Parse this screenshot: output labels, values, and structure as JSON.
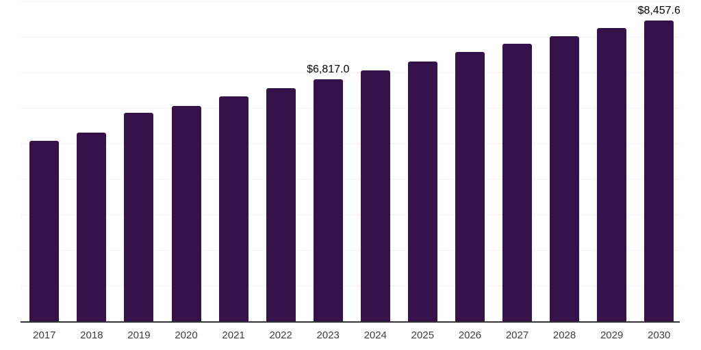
{
  "chart": {
    "bar_color": "#351249",
    "axis_color": "#333333",
    "gridline_color": "#f1f1f1",
    "value_label_color": "#000000",
    "tick_label_color": "#3d3d3d"
  },
  "chart_data": {
    "type": "bar",
    "title": "",
    "xlabel": "",
    "ylabel": "",
    "categories": [
      "2017",
      "2018",
      "2019",
      "2020",
      "2021",
      "2022",
      "2023",
      "2024",
      "2025",
      "2026",
      "2027",
      "2028",
      "2029",
      "2030"
    ],
    "values": [
      5075,
      5315,
      5870,
      6065,
      6320,
      6555,
      6817.0,
      7065,
      7305,
      7570,
      7805,
      8025,
      8255,
      8457.6
    ],
    "data_labels": [
      "",
      "",
      "",
      "",
      "",
      "",
      "$6,817.0",
      "",
      "",
      "",
      "",
      "",
      "",
      "$8,457.6"
    ],
    "ylim": [
      0,
      9000
    ],
    "gridline_interval": 1000,
    "grid": true,
    "legend": false
  }
}
